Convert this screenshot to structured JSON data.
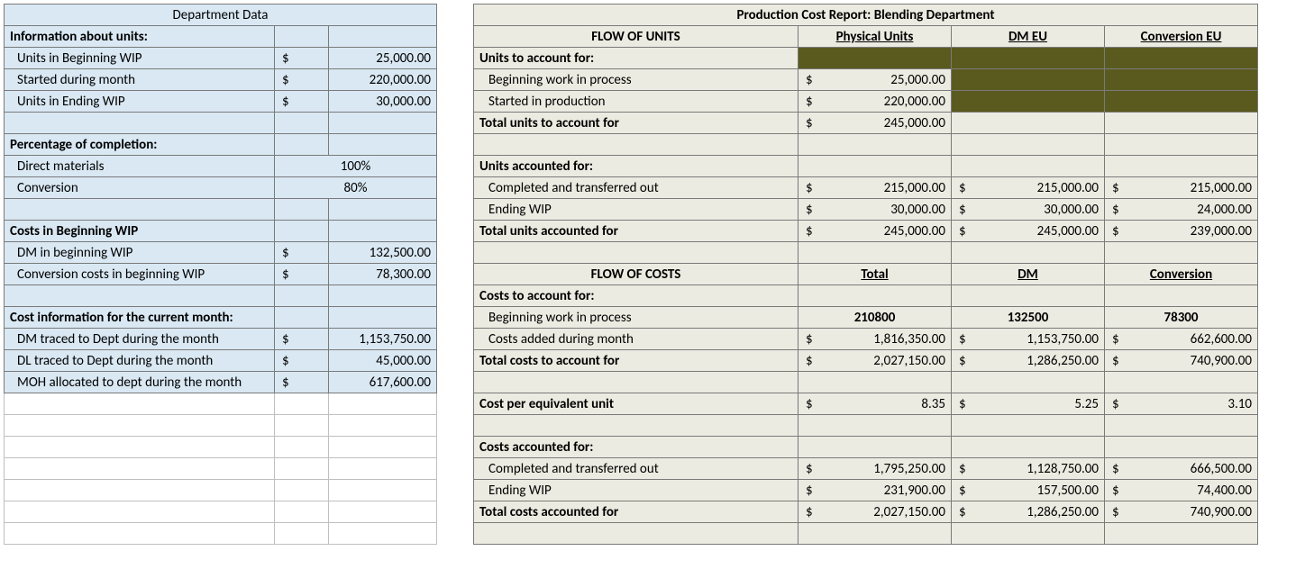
{
  "left": {
    "title": "Department Data",
    "sections": {
      "units": {
        "header": "Information about units:",
        "rows": [
          {
            "label": "Units in Beginning WIP",
            "cur": "$",
            "val": "25,000.00"
          },
          {
            "label": "Started during month",
            "cur": "$",
            "val": "220,000.00"
          },
          {
            "label": "Units in Ending WIP",
            "cur": "$",
            "val": "30,000.00"
          }
        ]
      },
      "pct": {
        "header": "Percentage of completion:",
        "rows": [
          {
            "label": "Direct materials",
            "val": "100%"
          },
          {
            "label": "Conversion",
            "val": "80%"
          }
        ]
      },
      "begcost": {
        "header": "Costs in Beginning WIP",
        "rows": [
          {
            "label": "DM in beginning WIP",
            "cur": "$",
            "val": "132,500.00"
          },
          {
            "label": "Conversion costs in beginning WIP",
            "cur": "$",
            "val": "78,300.00"
          }
        ]
      },
      "curcost": {
        "header": "Cost information for the current month:",
        "rows": [
          {
            "label": "DM traced to Dept during the month",
            "cur": "$",
            "val": "1,153,750.00"
          },
          {
            "label": "DL traced to Dept during the month",
            "cur": "$",
            "val": "45,000.00"
          },
          {
            "label": "MOH allocated to dept during the month",
            "cur": "$",
            "val": "617,600.00"
          }
        ]
      }
    }
  },
  "right": {
    "title": "Production Cost Report:   Blending Department",
    "flow_units": {
      "header": "FLOW OF UNITS",
      "cols": [
        "Physical Units",
        "DM EU",
        "Conversion EU"
      ],
      "acct_for_hdr": "Units to account for:",
      "acct_for": [
        {
          "label": "Beginning work in process",
          "c1": {
            "cur": "$",
            "val": "25,000.00"
          },
          "c2": null,
          "c3": null,
          "dark23": true
        },
        {
          "label": "Started in production",
          "c1": {
            "cur": "$",
            "val": "220,000.00"
          },
          "c2": null,
          "c3": null,
          "dark23": true
        }
      ],
      "acct_for_total": {
        "label": "Total  units to account for",
        "c1": {
          "cur": "$",
          "val": "245,000.00"
        }
      },
      "accted_hdr": "Units accounted for:",
      "accted": [
        {
          "label": "Completed and transferred out",
          "c1": {
            "cur": "$",
            "val": "215,000.00"
          },
          "c2": {
            "cur": "$",
            "val": "215,000.00"
          },
          "c3": {
            "cur": "$",
            "val": "215,000.00"
          }
        },
        {
          "label": "Ending WIP",
          "c1": {
            "cur": "$",
            "val": "30,000.00"
          },
          "c2": {
            "cur": "$",
            "val": "30,000.00"
          },
          "c3": {
            "cur": "$",
            "val": "24,000.00"
          }
        }
      ],
      "accted_total": {
        "label": "Total  units accounted for",
        "c1": {
          "cur": "$",
          "val": "245,000.00"
        },
        "c2": {
          "cur": "$",
          "val": "245,000.00"
        },
        "c3": {
          "cur": "$",
          "val": "239,000.00"
        }
      }
    },
    "flow_costs": {
      "header": "FLOW OF COSTS",
      "cols": [
        "Total",
        "DM",
        "Conversion"
      ],
      "acct_for_hdr": "Costs to account for:",
      "acct_for": [
        {
          "label": "Beginning work in process",
          "c1b": "210800",
          "c2b": "132500",
          "c3b": "78300"
        },
        {
          "label": "Costs added during month",
          "c1": {
            "cur": "$",
            "val": "1,816,350.00"
          },
          "c2": {
            "cur": "$",
            "val": "1,153,750.00"
          },
          "c3": {
            "cur": "$",
            "val": "662,600.00"
          }
        }
      ],
      "acct_for_total": {
        "label": "Total costs to account for",
        "c1": {
          "cur": "$",
          "val": "2,027,150.00"
        },
        "c2": {
          "cur": "$",
          "val": "1,286,250.00"
        },
        "c3": {
          "cur": "$",
          "val": "740,900.00"
        }
      },
      "cpeu": {
        "label": "Cost per equivalent unit",
        "c1": {
          "cur": "$",
          "val": "8.35"
        },
        "c2": {
          "cur": "$",
          "val": "5.25"
        },
        "c3": {
          "cur": "$",
          "val": "3.10"
        }
      },
      "accted_hdr": "Costs accounted for:",
      "accted": [
        {
          "label": "Completed and transferred out",
          "c1": {
            "cur": "$",
            "val": "1,795,250.00"
          },
          "c2": {
            "cur": "$",
            "val": "1,128,750.00"
          },
          "c3": {
            "cur": "$",
            "val": "666,500.00"
          }
        },
        {
          "label": "Ending WIP",
          "c1": {
            "cur": "$",
            "val": "231,900.00"
          },
          "c2": {
            "cur": "$",
            "val": "157,500.00"
          },
          "c3": {
            "cur": "$",
            "val": "74,400.00"
          }
        }
      ],
      "accted_total": {
        "label": "Total costs accounted for",
        "c1": {
          "cur": "$",
          "val": "2,027,150.00"
        },
        "c2": {
          "cur": "$",
          "val": "1,286,250.00"
        },
        "c3": {
          "cur": "$",
          "val": "740,900.00"
        }
      }
    }
  }
}
